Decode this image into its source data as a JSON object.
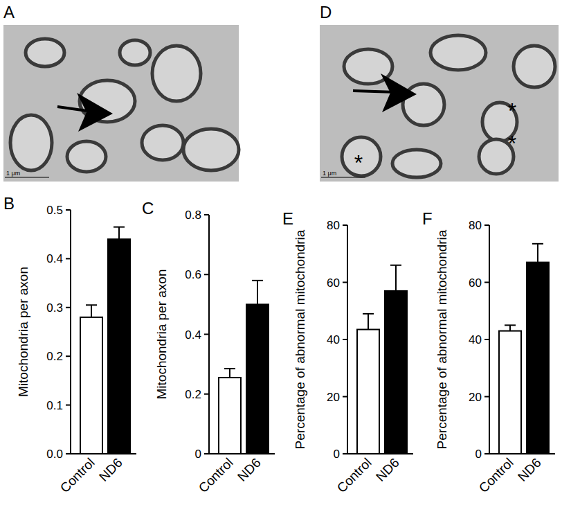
{
  "images": [
    {
      "label": "A",
      "scale_bar": "1 μm"
    },
    {
      "label": "D",
      "scale_bar": "1 μm",
      "annotations": [
        "*",
        "*",
        "*"
      ]
    }
  ],
  "chart_data": [
    {
      "type": "bar",
      "title": "B",
      "y_label": "Mitochondria per axon",
      "categories": [
        "Control",
        "ND6"
      ],
      "values": [
        0.28,
        0.44
      ],
      "errors": [
        0.025,
        0.025
      ],
      "colors": [
        "#ffffff",
        "#000000"
      ],
      "ylim": [
        0,
        0.5
      ],
      "yticks": [
        {
          "value": 0,
          "label": "0.0"
        },
        0.1,
        0.2,
        0.3,
        0.4,
        0.5
      ]
    },
    {
      "type": "bar",
      "title": "C",
      "y_label": "Mitochondria per axon",
      "categories": [
        "Control",
        "ND6"
      ],
      "values": [
        0.255,
        0.5
      ],
      "errors": [
        0.03,
        0.08
      ],
      "colors": [
        "#ffffff",
        "#000000"
      ],
      "ylim": [
        0,
        0.8
      ],
      "yticks": [
        0,
        0.2,
        0.4,
        0.6,
        0.8
      ]
    },
    {
      "type": "bar",
      "title": "E",
      "y_label": "Percentage of abnormal mitochondria",
      "categories": [
        "Control",
        "ND6"
      ],
      "values": [
        43.5,
        57
      ],
      "errors": [
        5.5,
        9
      ],
      "colors": [
        "#ffffff",
        "#000000"
      ],
      "ylim": [
        0,
        80
      ],
      "yticks": [
        0,
        20,
        40,
        60,
        80
      ]
    },
    {
      "type": "bar",
      "title": "F",
      "y_label": "Percentage of abnormal mitochondria",
      "categories": [
        "Control",
        "ND6"
      ],
      "values": [
        43,
        67
      ],
      "errors": [
        2,
        6.5
      ],
      "colors": [
        "#ffffff",
        "#000000"
      ],
      "ylim": [
        0,
        80
      ],
      "yticks": [
        0,
        20,
        40,
        60,
        80
      ]
    }
  ]
}
